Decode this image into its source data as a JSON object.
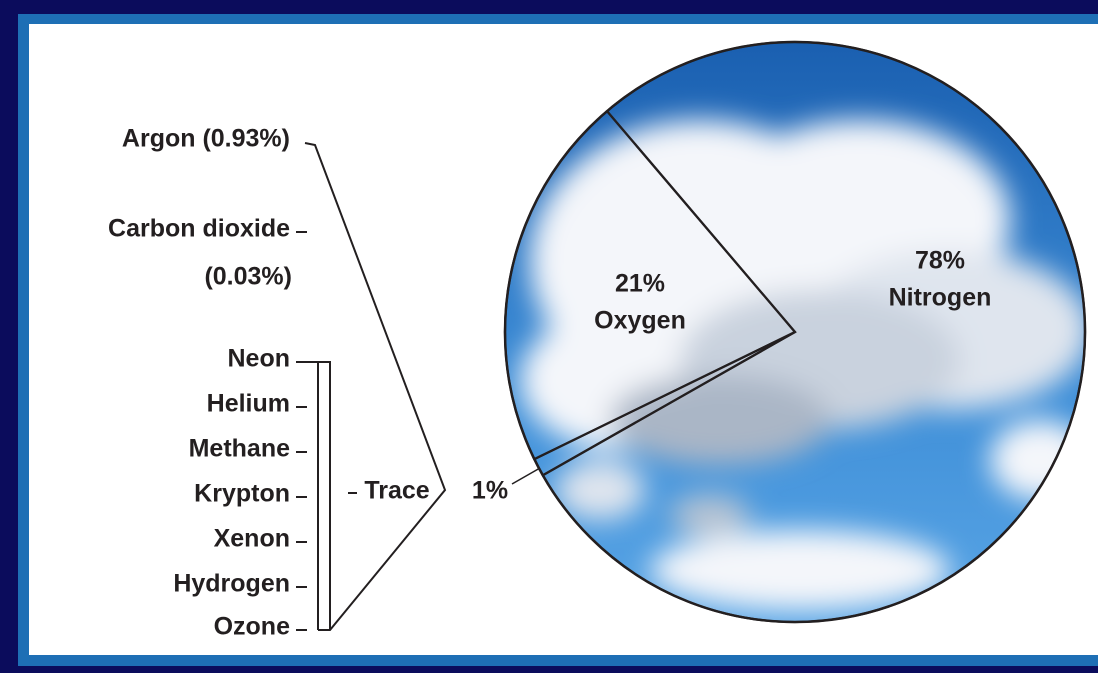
{
  "chart_data": {
    "type": "pie",
    "categories": [
      "Nitrogen",
      null,
      "Oxygen"
    ],
    "values": [
      78,
      1,
      21
    ],
    "value_labels": [
      "78%",
      "1%",
      "21%"
    ],
    "breakdown": {
      "labels": [
        "Argon (0.93%)",
        "Carbon dioxide",
        "(0.03%)",
        "Neon",
        "Helium",
        "Methane",
        "Krypton",
        "Xenon",
        "Hydrogen",
        "Ozone"
      ],
      "trace_label": "Trace"
    }
  }
}
